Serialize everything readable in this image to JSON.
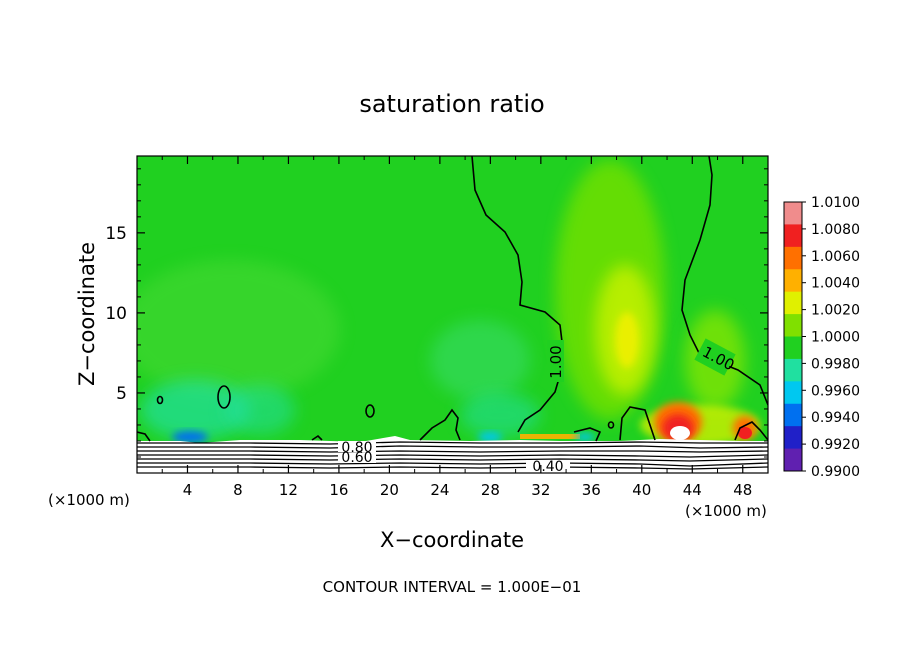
{
  "chart_data": {
    "type": "heatmap",
    "title": "saturation ratio",
    "xlabel": "X−coordinate",
    "ylabel": "Z−coordinate",
    "x_unit_left": "(×1000 m)",
    "x_unit_right": "(×1000 m)",
    "x_ticks": [
      4,
      8,
      12,
      16,
      20,
      24,
      28,
      32,
      36,
      40,
      44,
      48
    ],
    "y_ticks": [
      5,
      10,
      15
    ],
    "xlim": [
      0,
      50
    ],
    "ylim": [
      0,
      19.8
    ],
    "colorbar": {
      "levels": [
        "1.0100",
        "1.0080",
        "1.0060",
        "1.0040",
        "1.0020",
        "1.0000",
        "0.9980",
        "0.9960",
        "0.9940",
        "0.9920",
        "0.9900"
      ],
      "colors": [
        "#f08c8c",
        "#f02020",
        "#ff7000",
        "#ffb000",
        "#e0f000",
        "#80e000",
        "#20d020",
        "#20e0a0",
        "#00c8f0",
        "#0070f0",
        "#2020c8",
        "#6020b0"
      ]
    },
    "contour_labels": [
      {
        "text": "1.00",
        "x": 33.2,
        "z": 6.5
      },
      {
        "text": "1.00",
        "x": 46.3,
        "z": 6.5
      },
      {
        "text": "0.80",
        "x": 17.5,
        "z": 1.4
      },
      {
        "text": "0.60",
        "x": 17.5,
        "z": 0.9
      },
      {
        "text": "0.40",
        "x": 32.0,
        "z": 0.4
      }
    ],
    "footer": "CONTOUR INTERVAL = 1.000E−01"
  }
}
